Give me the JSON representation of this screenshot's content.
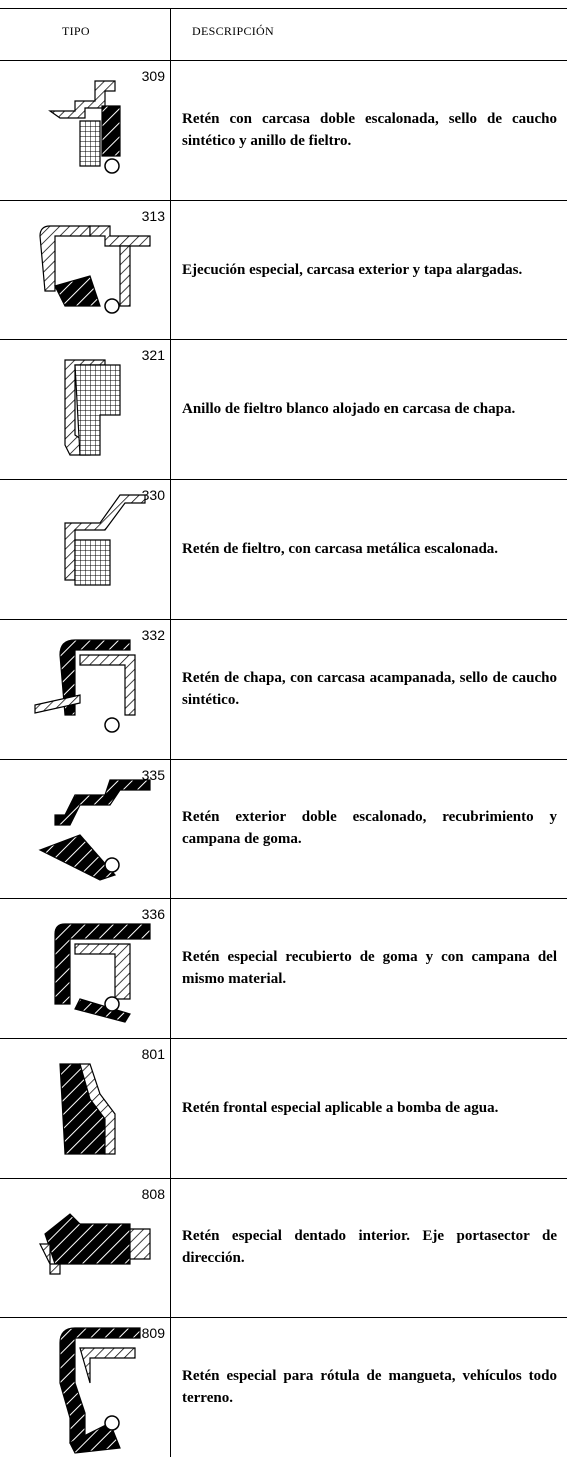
{
  "header": {
    "columns": [
      "TIPO",
      "DESCRIPCIÓN"
    ]
  },
  "rows": [
    {
      "type": "309",
      "description": "Retén con carcasa doble escalonada, sello de caucho sintético y anillo de fieltro."
    },
    {
      "type": "313",
      "description": "Ejecución especial, carcasa exterior y tapa alargadas."
    },
    {
      "type": "321",
      "description": "Anillo de fieltro blanco alojado en carcasa de chapa."
    },
    {
      "type": "330",
      "description": "Retén de fieltro, con carcasa metálica escalonada."
    },
    {
      "type": "332",
      "description": "Retén de chapa, con carcasa acampanada, sello de caucho sintético."
    },
    {
      "type": "335",
      "description": "Retén exterior doble escalonado, recubrimiento y campana de goma."
    },
    {
      "type": "336",
      "description": "Retén especial  recubierto de goma y con campana del mismo material."
    },
    {
      "type": "801",
      "description": "Retén frontal especial aplicable a bomba de agua."
    },
    {
      "type": "808",
      "description": "Retén especial dentado interior. Eje portasector de dirección."
    },
    {
      "type": "809",
      "description": "Retén especial para rótula de mangueta, vehículos todo terreno."
    }
  ]
}
